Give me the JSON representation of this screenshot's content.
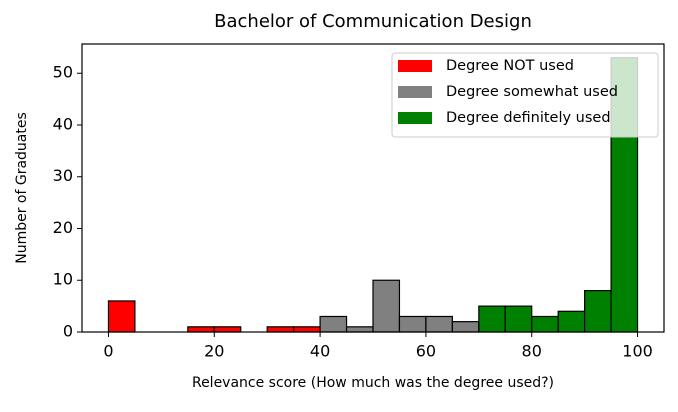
{
  "chart_data": {
    "type": "histogram",
    "title": "Bachelor of Communication Design",
    "x_label": "Relevance score (How much was the degree used?)",
    "y_label": "Number of Graduates",
    "xlim": [
      -5,
      105
    ],
    "ylim": [
      0,
      55.65
    ],
    "xticks": [
      0,
      20,
      40,
      60,
      80,
      100
    ],
    "yticks": [
      0,
      10,
      20,
      30,
      40,
      50
    ],
    "legend": "upper right",
    "series": [
      {
        "name": "Degree NOT used",
        "color": "#ff0000",
        "bins": [
          0,
          5,
          10,
          15,
          20,
          25,
          30,
          35,
          40
        ],
        "values": [
          6,
          0,
          0,
          1,
          1,
          0,
          1,
          1
        ]
      },
      {
        "name": "Degree somewhat used",
        "color": "#808080",
        "bins": [
          40,
          45,
          50,
          55,
          60,
          65,
          70
        ],
        "values": [
          3,
          1,
          10,
          3,
          3,
          2
        ]
      },
      {
        "name": "Degree definitely used",
        "color": "#008000",
        "bins": [
          70,
          75,
          80,
          85,
          90,
          95,
          100
        ],
        "values": [
          5,
          5,
          3,
          4,
          8,
          53
        ]
      }
    ]
  }
}
